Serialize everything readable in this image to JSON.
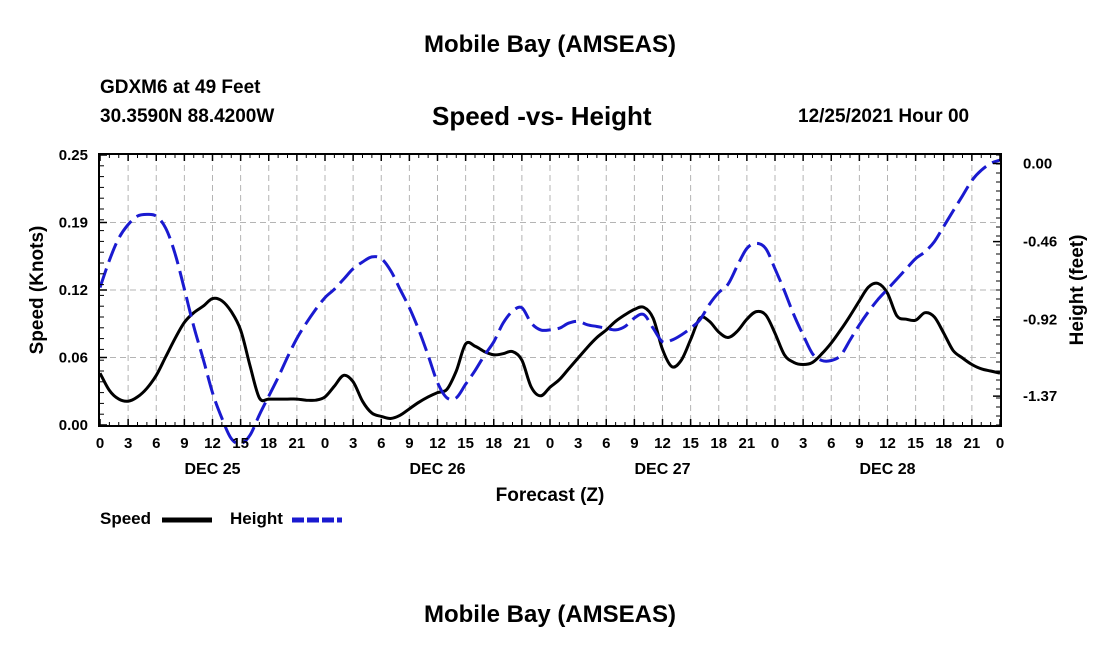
{
  "header": {
    "title": "Mobile Bay (AMSEAS)",
    "station": "GDXM6 at 49 Feet",
    "coords": "30.3590N  88.4200W",
    "subtitle": "Speed -vs- Height",
    "datetime": "12/25/2021 Hour 00"
  },
  "footer": {
    "title": "Mobile Bay (AMSEAS)"
  },
  "legend": {
    "speed_label": "Speed",
    "height_label": "Height"
  },
  "colors": {
    "speed": "#000000",
    "height": "#1a1ad0",
    "grid": "#b4b4b4"
  },
  "chart_data": {
    "type": "line",
    "xlabel": "Forecast (Z)",
    "ylabel_left": "Speed (Knots)",
    "ylabel_right": "Height (feet)",
    "x_range": [
      0,
      96
    ],
    "x_ticks": [
      "0",
      "3",
      "6",
      "9",
      "12",
      "15",
      "18",
      "21",
      "0",
      "3",
      "6",
      "9",
      "12",
      "15",
      "18",
      "21",
      "0",
      "3",
      "6",
      "9",
      "12",
      "15",
      "18",
      "21",
      "0",
      "3",
      "6",
      "9",
      "12",
      "15",
      "18",
      "21",
      "0"
    ],
    "day_labels": [
      {
        "label": "DEC 25",
        "at_hour": 12
      },
      {
        "label": "DEC 26",
        "at_hour": 36
      },
      {
        "label": "DEC 27",
        "at_hour": 60
      },
      {
        "label": "DEC 28",
        "at_hour": 84
      }
    ],
    "y_left": {
      "range": [
        0,
        0.25
      ],
      "ticks": [
        "0.00",
        "0.06",
        "0.12",
        "0.19",
        "0.25"
      ],
      "tick_values": [
        0,
        0.0625,
        0.125,
        0.1875,
        0.25
      ]
    },
    "y_right": {
      "range": [
        -1.54,
        0.05
      ],
      "ticks": [
        "0.00",
        "-0.46",
        "-0.92",
        "-1.37"
      ],
      "tick_values": [
        0,
        -0.46,
        -0.92,
        -1.37
      ]
    },
    "grid": true,
    "series": [
      {
        "name": "Speed",
        "axis": "left",
        "style": "solid",
        "x": [
          0,
          1,
          2,
          3,
          4,
          5,
          6,
          7,
          8,
          9,
          10,
          11,
          12,
          13,
          14,
          15,
          16,
          17,
          18,
          19,
          20,
          21,
          22,
          23,
          24,
          25,
          26,
          27,
          28,
          29,
          30,
          31,
          32,
          33,
          34,
          35,
          36,
          37,
          38,
          39,
          40,
          41,
          42,
          43,
          44,
          45,
          46,
          47,
          48,
          49,
          50,
          51,
          52,
          53,
          54,
          55,
          56,
          57,
          58,
          59,
          60,
          61,
          62,
          63,
          64,
          65,
          66,
          67,
          68,
          69,
          70,
          71,
          72,
          73,
          74,
          75,
          76,
          77,
          78,
          79,
          80,
          81,
          82,
          83,
          84,
          85,
          86,
          87,
          88,
          89,
          90,
          91,
          92,
          93,
          94,
          95,
          96
        ],
        "values": [
          0.048,
          0.032,
          0.024,
          0.022,
          0.026,
          0.034,
          0.046,
          0.063,
          0.08,
          0.095,
          0.104,
          0.11,
          0.117,
          0.115,
          0.105,
          0.088,
          0.055,
          0.025,
          0.024,
          0.024,
          0.024,
          0.024,
          0.023,
          0.023,
          0.026,
          0.036,
          0.046,
          0.04,
          0.022,
          0.011,
          0.008,
          0.006,
          0.009,
          0.015,
          0.021,
          0.026,
          0.03,
          0.033,
          0.05,
          0.075,
          0.073,
          0.068,
          0.065,
          0.066,
          0.068,
          0.06,
          0.035,
          0.027,
          0.035,
          0.042,
          0.052,
          0.062,
          0.072,
          0.081,
          0.088,
          0.096,
          0.102,
          0.107,
          0.109,
          0.099,
          0.07,
          0.054,
          0.06,
          0.079,
          0.099,
          0.096,
          0.086,
          0.081,
          0.087,
          0.098,
          0.105,
          0.102,
          0.085,
          0.065,
          0.058,
          0.056,
          0.058,
          0.066,
          0.076,
          0.088,
          0.101,
          0.115,
          0.128,
          0.131,
          0.122,
          0.101,
          0.098,
          0.097,
          0.104,
          0.1,
          0.085,
          0.069,
          0.062,
          0.056,
          0.052,
          0.05,
          0.048
        ]
      },
      {
        "name": "Height",
        "axis": "right",
        "style": "dashed",
        "x": [
          0,
          1,
          2,
          3,
          4,
          5,
          6,
          7,
          8,
          9,
          10,
          11,
          12,
          13,
          14,
          15,
          16,
          17,
          18,
          19,
          20,
          21,
          22,
          23,
          24,
          25,
          26,
          27,
          28,
          29,
          30,
          31,
          32,
          33,
          34,
          35,
          36,
          37,
          38,
          39,
          40,
          41,
          42,
          43,
          44,
          45,
          46,
          47,
          48,
          49,
          50,
          51,
          52,
          53,
          54,
          55,
          56,
          57,
          58,
          59,
          60,
          61,
          62,
          63,
          64,
          65,
          66,
          67,
          68,
          69,
          70,
          71,
          72,
          73,
          74,
          75,
          76,
          77,
          78,
          79,
          80,
          81,
          82,
          83,
          84,
          85,
          86,
          87,
          88,
          89,
          90,
          91,
          92,
          93,
          94,
          95,
          96
        ],
        "values": [
          -0.73,
          -0.57,
          -0.44,
          -0.36,
          -0.31,
          -0.3,
          -0.31,
          -0.38,
          -0.53,
          -0.74,
          -0.96,
          -1.15,
          -1.35,
          -1.5,
          -1.62,
          -1.65,
          -1.6,
          -1.48,
          -1.37,
          -1.26,
          -1.14,
          -1.03,
          -0.94,
          -0.86,
          -0.79,
          -0.74,
          -0.68,
          -0.62,
          -0.58,
          -0.55,
          -0.56,
          -0.63,
          -0.74,
          -0.85,
          -0.98,
          -1.13,
          -1.29,
          -1.38,
          -1.38,
          -1.3,
          -1.22,
          -1.13,
          -1.05,
          -0.94,
          -0.87,
          -0.85,
          -0.94,
          -0.98,
          -0.98,
          -0.97,
          -0.94,
          -0.93,
          -0.95,
          -0.96,
          -0.97,
          -0.98,
          -0.96,
          -0.91,
          -0.89,
          -0.97,
          -1.05,
          -1.04,
          -1.01,
          -0.97,
          -0.92,
          -0.83,
          -0.76,
          -0.71,
          -0.6,
          -0.5,
          -0.47,
          -0.5,
          -0.62,
          -0.75,
          -0.89,
          -1.01,
          -1.12,
          -1.16,
          -1.16,
          -1.13,
          -1.04,
          -0.95,
          -0.87,
          -0.8,
          -0.74,
          -0.68,
          -0.62,
          -0.56,
          -0.52,
          -0.46,
          -0.37,
          -0.28,
          -0.19,
          -0.1,
          -0.04,
          0.0,
          0.02
        ]
      }
    ]
  }
}
